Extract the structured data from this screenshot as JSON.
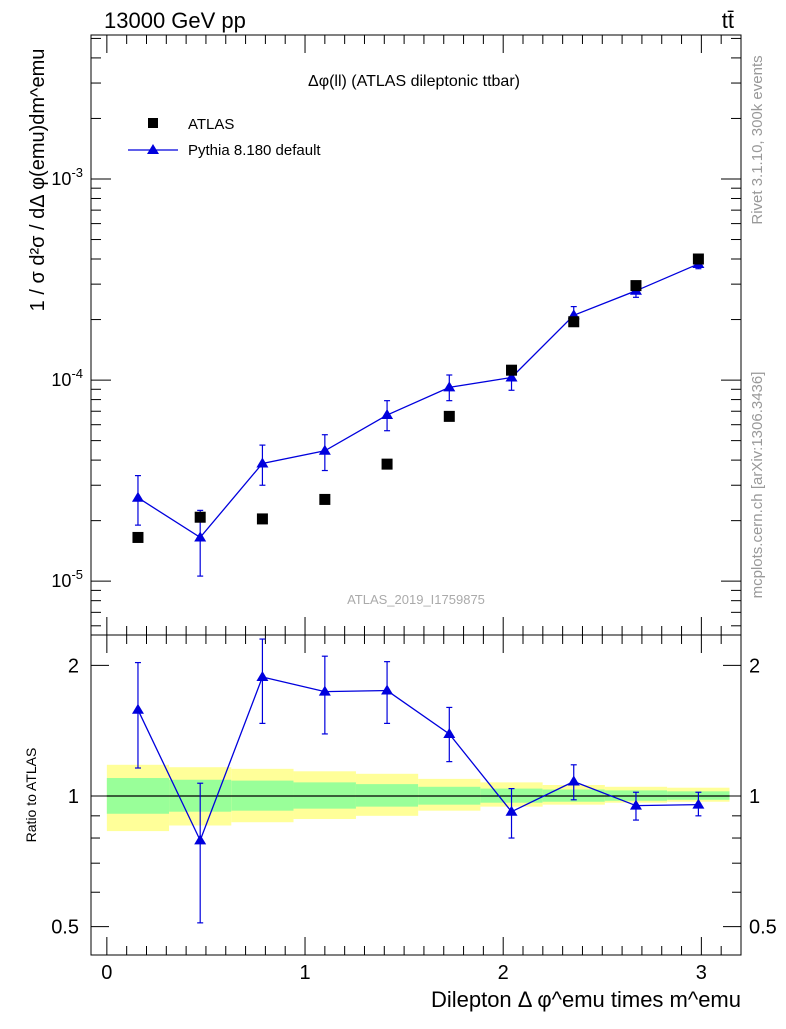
{
  "header": {
    "left": "13000 GeV pp",
    "right": "tt̄"
  },
  "side_labels": {
    "rivet": "Rivet 3.1.10,  300k events",
    "mcplots": "mcplots.cern.ch [arXiv:1306.3436]"
  },
  "chart_data": [
    {
      "type": "scatter",
      "title": "Δφ(ll) (ATLAS dileptonic ttbar)",
      "watermark": "ATLAS_2019_I1759875",
      "ylabel": "1 / σ  d²σ / dΔ φ(emu)dm^emu",
      "yscale": "log",
      "ylim": [
        5.4e-06,
        0.0052
      ],
      "xlim": [
        -0.08,
        3.2
      ],
      "ytick_labels": [
        "10^-5",
        "10^-4",
        "10^-3"
      ],
      "legend": {
        "placement": "top-left",
        "entries": [
          "ATLAS",
          "Pythia 8.180 default"
        ]
      },
      "x": [
        0.157,
        0.471,
        0.785,
        1.1,
        1.414,
        1.728,
        2.042,
        2.356,
        2.67,
        2.985
      ],
      "series": [
        {
          "name": "ATLAS",
          "marker": "square",
          "color": "#000000",
          "values": [
            1.65e-05,
            2.08e-05,
            2.04e-05,
            2.55e-05,
            3.82e-05,
            6.6e-05,
            0.000112,
            0.000195,
            0.000295,
            0.0004
          ]
        },
        {
          "name": "Pythia 8.180 default",
          "marker": "triangle",
          "color": "#0000dd",
          "values": [
            2.6e-05,
            1.65e-05,
            3.85e-05,
            4.45e-05,
            6.7e-05,
            9.2e-05,
            0.000103,
            0.00021,
            0.000278,
            0.000378
          ],
          "err_low": [
            1.9e-05,
            1.06e-05,
            3e-05,
            3.55e-05,
            5.6e-05,
            7.9e-05,
            8.9e-05,
            0.00019,
            0.000258,
            0.000358
          ],
          "err_high": [
            3.35e-05,
            2.25e-05,
            4.75e-05,
            5.35e-05,
            7.9e-05,
            0.000106,
            0.000117,
            0.000232,
            0.0003,
            0.0004
          ]
        }
      ]
    },
    {
      "type": "line",
      "ylabel": "Ratio to ATLAS",
      "xlabel": "Dilepton Δ φ^emu times m^emu",
      "yscale": "log",
      "ylim": [
        0.43,
        2.35
      ],
      "xlim": [
        -0.08,
        3.2
      ],
      "yticks": [
        0.5,
        1,
        2
      ],
      "ytick_labels": [
        "0.5",
        "1",
        "2"
      ],
      "xticks": [
        0,
        1,
        2,
        3
      ],
      "xtick_labels": [
        "0",
        "1",
        "2",
        "3"
      ],
      "reference": 1,
      "bins": [
        0,
        0.314,
        0.628,
        0.942,
        1.257,
        1.571,
        1.885,
        2.199,
        2.513,
        2.827,
        3.142
      ],
      "band_outer_low": [
        0.83,
        0.855,
        0.87,
        0.885,
        0.9,
        0.925,
        0.945,
        0.955,
        0.965,
        0.97
      ],
      "band_outer_high": [
        1.18,
        1.165,
        1.155,
        1.14,
        1.125,
        1.095,
        1.075,
        1.06,
        1.05,
        1.045
      ],
      "band_inner_low": [
        0.91,
        0.92,
        0.925,
        0.935,
        0.945,
        0.955,
        0.965,
        0.97,
        0.975,
        0.98
      ],
      "band_inner_high": [
        1.1,
        1.09,
        1.085,
        1.075,
        1.065,
        1.05,
        1.04,
        1.035,
        1.03,
        1.025
      ],
      "x": [
        0.157,
        0.471,
        0.785,
        1.1,
        1.414,
        1.728,
        2.042,
        2.356,
        2.67,
        2.985
      ],
      "series": [
        {
          "name": "Pythia 8.180 default",
          "color": "#0000dd",
          "values": [
            1.58,
            0.79,
            1.88,
            1.74,
            1.75,
            1.39,
            0.92,
            1.08,
            0.95,
            0.955
          ],
          "err_low": [
            1.16,
            0.51,
            1.47,
            1.39,
            1.47,
            1.2,
            0.8,
            0.98,
            0.88,
            0.9
          ],
          "err_high": [
            2.03,
            1.07,
            2.3,
            2.1,
            2.04,
            1.6,
            1.04,
            1.18,
            1.02,
            1.02
          ]
        }
      ]
    }
  ]
}
